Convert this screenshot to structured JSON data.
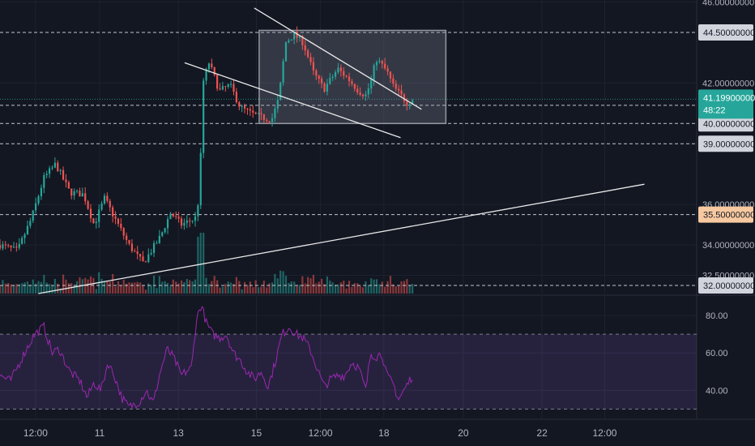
{
  "chart_data": [
    {
      "type": "candlestick",
      "title": "",
      "ylim": [
        31.6,
        46.1
      ],
      "y_ticks": [
        "46.00000000",
        "42.00000000",
        "36.00000000",
        "34.00000000",
        "32.50000000"
      ],
      "x_ticks": [
        "12:00",
        "11",
        "13",
        "15",
        "12:00",
        "18",
        "20",
        "22",
        "12:00"
      ],
      "x_range": [
        0,
        100
      ],
      "x_tick_positions": [
        5.1,
        14.3,
        25.6,
        36.8,
        46.0,
        55.1,
        66.5,
        77.8,
        86.8
      ],
      "last_price": {
        "value": "41.19900000",
        "countdown": "48:22",
        "color": "#26a69a"
      },
      "horizontal_levels": [
        {
          "value": 44.5,
          "label": "44.50000000",
          "color": "#d1d4dc"
        },
        {
          "value": 40.0,
          "label": "40.00000000",
          "color": "#d1d4dc"
        },
        {
          "value": 39.0,
          "label": "39.00000000",
          "color": "#d1d4dc"
        },
        {
          "value": 35.5,
          "label": "35.50000000",
          "color": "#f7c9a0"
        },
        {
          "value": 32.0,
          "label": "32.00000000",
          "color": "#d1d4dc"
        }
      ],
      "extra_dashed_levels": [
        40.9
      ],
      "trend_lines": [
        {
          "x1": 36.5,
          "y1": 45.7,
          "x2": 60.5,
          "y2": 40.7
        },
        {
          "x1": 26.5,
          "y1": 43.0,
          "x2": 57.5,
          "y2": 39.3
        },
        {
          "x1": 5.5,
          "y1": 31.6,
          "x2": 92.5,
          "y2": 37.0
        }
      ],
      "rectangle": {
        "x1": 37.2,
        "x2": 64.0,
        "y1": 44.6,
        "y2": 40.0
      },
      "anchors": [
        [
          0,
          34.0
        ],
        [
          2.5,
          33.7
        ],
        [
          4.5,
          35.3
        ],
        [
          6.3,
          37.3
        ],
        [
          8.0,
          38.0
        ],
        [
          10.0,
          36.6
        ],
        [
          12.0,
          36.5
        ],
        [
          13.5,
          35.0
        ],
        [
          15.0,
          36.3
        ],
        [
          16.5,
          35.3
        ],
        [
          18.5,
          34.0
        ],
        [
          20.5,
          33.1
        ],
        [
          21.5,
          33.6
        ],
        [
          23.0,
          34.4
        ],
        [
          24.5,
          35.6
        ],
        [
          26.0,
          35.0
        ],
        [
          28.0,
          35.3
        ],
        [
          28.6,
          36.4
        ],
        [
          29.2,
          42.1
        ],
        [
          30.0,
          43.0
        ],
        [
          31.5,
          41.6
        ],
        [
          33.0,
          41.9
        ],
        [
          34.5,
          40.8
        ],
        [
          36.0,
          40.5
        ],
        [
          37.5,
          40.3
        ],
        [
          39.0,
          40.2
        ],
        [
          40.0,
          41.2
        ],
        [
          41.0,
          44.0
        ],
        [
          42.2,
          44.4
        ],
        [
          43.5,
          44.0
        ],
        [
          45.0,
          42.5
        ],
        [
          46.5,
          41.7
        ],
        [
          48.5,
          42.7
        ],
        [
          50.0,
          42.2
        ],
        [
          51.5,
          41.6
        ],
        [
          52.5,
          41.4
        ],
        [
          53.2,
          42.0
        ],
        [
          54.0,
          43.2
        ],
        [
          55.5,
          42.6
        ],
        [
          56.5,
          41.8
        ],
        [
          57.5,
          41.4
        ],
        [
          58.5,
          41.0
        ],
        [
          59.2,
          41.2
        ]
      ],
      "volume_series_note": "volume histogram under price",
      "up_color": "#26a69a",
      "down_color": "#ef5350"
    },
    {
      "type": "line",
      "title": "",
      "ylim": [
        25,
        90
      ],
      "y_ticks": [
        "80.00",
        "60.00",
        "40.00"
      ],
      "bands": {
        "upper": 70,
        "lower": 30
      },
      "line_color": "#9c27b0",
      "band_fill": "rgba(126,87,194,0.18)",
      "anchors": [
        [
          0,
          48
        ],
        [
          1.5,
          45
        ],
        [
          3.5,
          60
        ],
        [
          5.0,
          70
        ],
        [
          6.3,
          74
        ],
        [
          7.5,
          60
        ],
        [
          8.5,
          62
        ],
        [
          10.0,
          50
        ],
        [
          11.5,
          45
        ],
        [
          12.5,
          36
        ],
        [
          13.5,
          44
        ],
        [
          14.5,
          40
        ],
        [
          15.5,
          55
        ],
        [
          16.5,
          47
        ],
        [
          17.5,
          36
        ],
        [
          18.5,
          31
        ],
        [
          20.0,
          34
        ],
        [
          21.0,
          40
        ],
        [
          22.0,
          33
        ],
        [
          23.0,
          50
        ],
        [
          24.0,
          62
        ],
        [
          25.0,
          57
        ],
        [
          26.0,
          48
        ],
        [
          27.5,
          52
        ],
        [
          28.2,
          78
        ],
        [
          28.9,
          86
        ],
        [
          29.6,
          76
        ],
        [
          30.5,
          70
        ],
        [
          31.5,
          68
        ],
        [
          32.5,
          70
        ],
        [
          33.5,
          60
        ],
        [
          34.5,
          56
        ],
        [
          35.5,
          50
        ],
        [
          36.5,
          46
        ],
        [
          37.5,
          50
        ],
        [
          38.5,
          42
        ],
        [
          39.5,
          55
        ],
        [
          40.5,
          70
        ],
        [
          41.5,
          74
        ],
        [
          42.5,
          70
        ],
        [
          43.5,
          68
        ],
        [
          44.5,
          62
        ],
        [
          45.5,
          52
        ],
        [
          46.5,
          42
        ],
        [
          47.5,
          46
        ],
        [
          48.5,
          48
        ],
        [
          49.5,
          48
        ],
        [
          50.5,
          55
        ],
        [
          51.5,
          52
        ],
        [
          52.5,
          40
        ],
        [
          53.2,
          60
        ],
        [
          54.0,
          58
        ],
        [
          54.8,
          60
        ],
        [
          55.5,
          48
        ],
        [
          56.5,
          43
        ],
        [
          57.2,
          35
        ],
        [
          58.0,
          40
        ],
        [
          59.2,
          48
        ]
      ]
    }
  ]
}
